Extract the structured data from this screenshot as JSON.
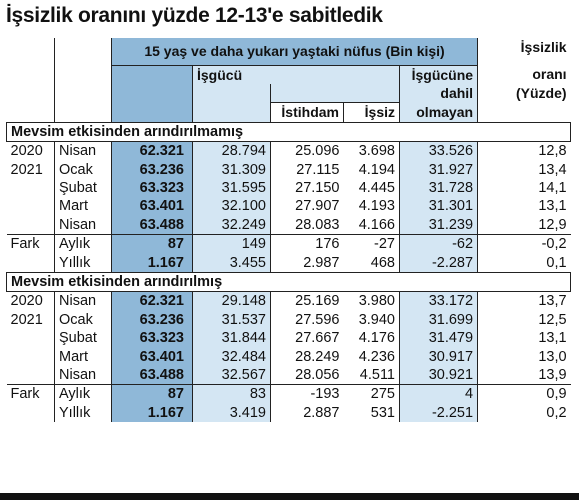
{
  "title": "İşsizlik oranını yüzde 12-13'e sabitledik",
  "headers": {
    "population": "15 yaş ve daha yukarı yaştaki nüfus (Bin kişi)",
    "labor_force": "İşgücü",
    "employment": "İstihdam",
    "unemployed": "İşsiz",
    "not_in_lf_1": "İşgücüne",
    "not_in_lf_2": "dahil",
    "not_in_lf_3": "olmayan",
    "rate_1": "İşsizlik",
    "rate_2": "oranı",
    "rate_3": "(Yüzde)"
  },
  "sections": [
    {
      "title": "Mevsim etkisinden arındırılmamış",
      "rows": [
        {
          "year": "2020",
          "month": "Nisan",
          "pop": "62.321",
          "lf": "28.794",
          "emp": "25.096",
          "unemp": "3.698",
          "notlf": "33.526",
          "rate": "12,8"
        },
        {
          "year": "2021",
          "month": "Ocak",
          "pop": "63.236",
          "lf": "31.309",
          "emp": "27.115",
          "unemp": "4.194",
          "notlf": "31.927",
          "rate": "13,4"
        },
        {
          "year": "",
          "month": "Şubat",
          "pop": "63.323",
          "lf": "31.595",
          "emp": "27.150",
          "unemp": "4.445",
          "notlf": "31.728",
          "rate": "14,1"
        },
        {
          "year": "",
          "month": "Mart",
          "pop": "63.401",
          "lf": "32.100",
          "emp": "27.907",
          "unemp": "4.193",
          "notlf": "31.301",
          "rate": "13,1"
        },
        {
          "year": "",
          "month": "Nisan",
          "pop": "63.488",
          "lf": "32.249",
          "emp": "28.083",
          "unemp": "4.166",
          "notlf": "31.239",
          "rate": "12,9"
        }
      ],
      "diff": [
        {
          "label": "Fark",
          "period": "Aylık",
          "pop": "87",
          "lf": "149",
          "emp": "176",
          "unemp": "-27",
          "notlf": "-62",
          "rate": "-0,2"
        },
        {
          "label": "",
          "period": "Yıllık",
          "pop": "1.167",
          "lf": "3.455",
          "emp": "2.987",
          "unemp": "468",
          "notlf": "-2.287",
          "rate": "0,1"
        }
      ]
    },
    {
      "title": "Mevsim etkisinden arındırılmış",
      "rows": [
        {
          "year": "2020",
          "month": "Nisan",
          "pop": "62.321",
          "lf": "29.148",
          "emp": "25.169",
          "unemp": "3.980",
          "notlf": "33.172",
          "rate": "13,7"
        },
        {
          "year": "2021",
          "month": "Ocak",
          "pop": "63.236",
          "lf": "31.537",
          "emp": "27.596",
          "unemp": "3.940",
          "notlf": "31.699",
          "rate": "12,5"
        },
        {
          "year": "",
          "month": "Şubat",
          "pop": "63.323",
          "lf": "31.844",
          "emp": "27.667",
          "unemp": "4.176",
          "notlf": "31.479",
          "rate": "13,1"
        },
        {
          "year": "",
          "month": "Mart",
          "pop": "63.401",
          "lf": "32.484",
          "emp": "28.249",
          "unemp": "4.236",
          "notlf": "30.917",
          "rate": "13,0"
        },
        {
          "year": "",
          "month": "Nisan",
          "pop": "63.488",
          "lf": "32.567",
          "emp": "28.056",
          "unemp": "4.511",
          "notlf": "30.921",
          "rate": "13,9"
        }
      ],
      "diff": [
        {
          "label": "Fark",
          "period": "Aylık",
          "pop": "87",
          "lf": "83",
          "emp": "-193",
          "unemp": "275",
          "notlf": "4",
          "rate": "0,9"
        },
        {
          "label": "",
          "period": "Yıllık",
          "pop": "1.167",
          "lf": "3.419",
          "emp": "2.887",
          "unemp": "531",
          "notlf": "-2.251",
          "rate": "0,2"
        }
      ]
    }
  ]
}
